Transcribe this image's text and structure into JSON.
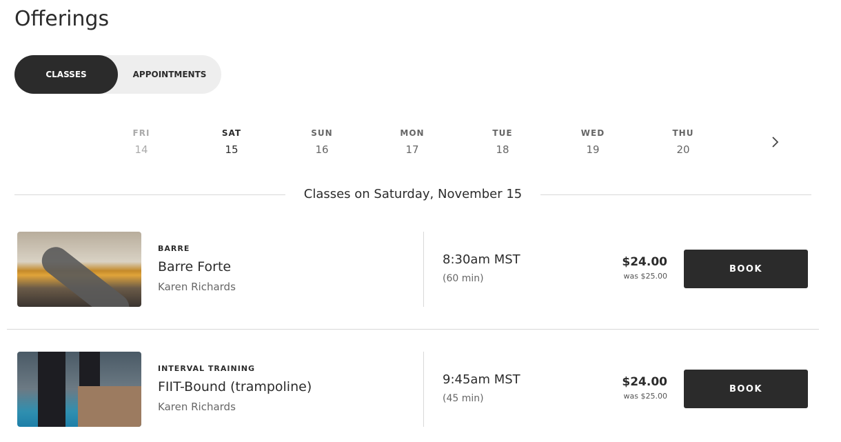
{
  "page_title": "Offerings",
  "tabs": [
    {
      "label": "CLASSES",
      "active": true
    },
    {
      "label": "APPOINTMENTS",
      "active": false
    }
  ],
  "days": [
    {
      "name": "FRI",
      "date": "14",
      "state": "past"
    },
    {
      "name": "SAT",
      "date": "15",
      "state": "selected"
    },
    {
      "name": "SUN",
      "date": "16",
      "state": "normal"
    },
    {
      "name": "MON",
      "date": "17",
      "state": "normal"
    },
    {
      "name": "TUE",
      "date": "18",
      "state": "normal"
    },
    {
      "name": "WED",
      "date": "19",
      "state": "normal"
    },
    {
      "name": "THU",
      "date": "20",
      "state": "normal"
    }
  ],
  "next_icon": "chevron-right-icon",
  "section_heading": "Classes on Saturday, November 15",
  "classes": [
    {
      "category": "BARRE",
      "name": "Barre Forte",
      "instructor": "Karen Richards",
      "time": "8:30am MST",
      "duration": "(60 min)",
      "price": "$24.00",
      "was": "was $25.00",
      "button": "BOOK"
    },
    {
      "category": "INTERVAL TRAINING",
      "name": "FIIT-Bound (trampoline)",
      "instructor": "Karen Richards",
      "time": "9:45am MST",
      "duration": "(45 min)",
      "price": "$24.00",
      "was": "was $25.00",
      "button": "BOOK"
    }
  ],
  "colors": {
    "primary": "#2b2b2b",
    "toggle_bg": "#eeeeee",
    "divider": "#d8d8d8"
  }
}
